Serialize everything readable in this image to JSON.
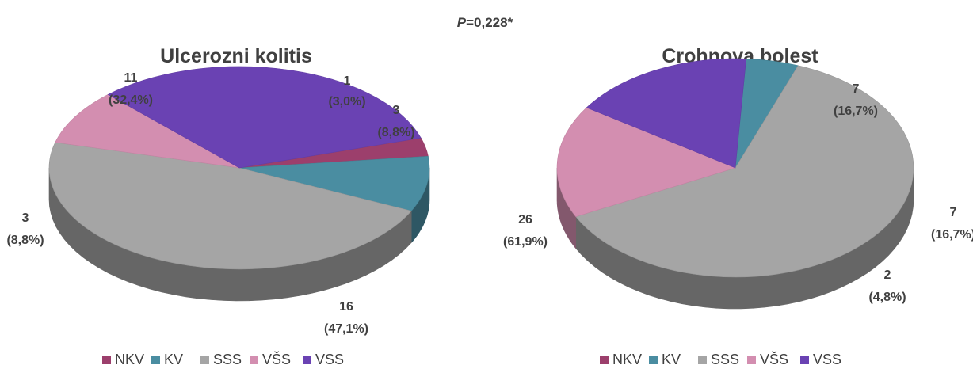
{
  "p_value": {
    "prefix": "P",
    "rest": "=0,228*"
  },
  "legend_labels": [
    "NKV",
    "KV",
    "SSS",
    "VŠS",
    "VSS"
  ],
  "colors": {
    "NKV": "#9c3f6c",
    "KV": "#4a8da1",
    "SSS": "#a5a5a5",
    "VŠS": "#d38eb0",
    "VSS": "#6a42b3"
  },
  "chart_data": [
    {
      "type": "pie",
      "title": "Ulcerozni kolitis",
      "series": [
        {
          "category": "NKV",
          "value": 1,
          "percent": "3,0%"
        },
        {
          "category": "KV",
          "value": 3,
          "percent": "8,8%"
        },
        {
          "category": "SSS",
          "value": 16,
          "percent": "47,1%"
        },
        {
          "category": "VŠS",
          "value": 3,
          "percent": "8,8%"
        },
        {
          "category": "VSS",
          "value": 11,
          "percent": "32,4%"
        }
      ],
      "legend": "bottom"
    },
    {
      "type": "pie",
      "title": "Crohnova bolest",
      "series": [
        {
          "category": "NKV",
          "value": 0,
          "percent": ""
        },
        {
          "category": "KV",
          "value": 2,
          "percent": "4,8%"
        },
        {
          "category": "SSS",
          "value": 26,
          "percent": "61,9%"
        },
        {
          "category": "VŠS",
          "value": 7,
          "percent": "16,7%"
        },
        {
          "category": "VSS",
          "value": 7,
          "percent": "16,7%"
        }
      ],
      "legend": "bottom"
    }
  ]
}
